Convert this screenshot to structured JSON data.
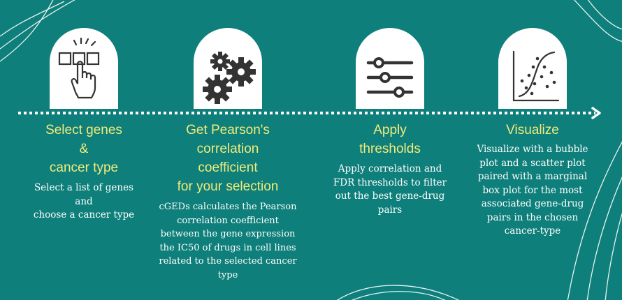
{
  "colors": {
    "background": "#0e7f7a",
    "title": "#f2ec7a",
    "text": "#ffffff",
    "icon": "#333333"
  },
  "steps": [
    {
      "icon": "hand-select-icon",
      "title_lines": [
        "Select genes",
        "&",
        "cancer type"
      ],
      "desc_lines": [
        "Select a list of genes",
        "and",
        "choose a cancer type"
      ]
    },
    {
      "icon": "gears-icon",
      "title_lines": [
        "Get Pearson's",
        "correlation",
        "coefficient",
        "for your selection"
      ],
      "desc_lines": [
        "cGEDs calculates the Pearson",
        "correlation coefficient",
        "between the gene expression",
        "the IC50 of drugs in cell lines",
        "related to the selected cancer",
        "type"
      ]
    },
    {
      "icon": "sliders-icon",
      "title_lines": [
        "Apply",
        "thresholds"
      ],
      "desc_lines": [
        "Apply correlation and",
        "FDR thresholds to filter",
        "out the best gene-drug",
        "pairs"
      ]
    },
    {
      "icon": "scatter-plot-icon",
      "title_lines": [
        "Visualize"
      ],
      "desc_lines": [
        "Visualize with a bubble",
        "plot and a scatter plot",
        "paired with a marginal",
        "box plot for the most",
        "associated gene-drug",
        "pairs in the chosen",
        "cancer-type"
      ]
    }
  ]
}
